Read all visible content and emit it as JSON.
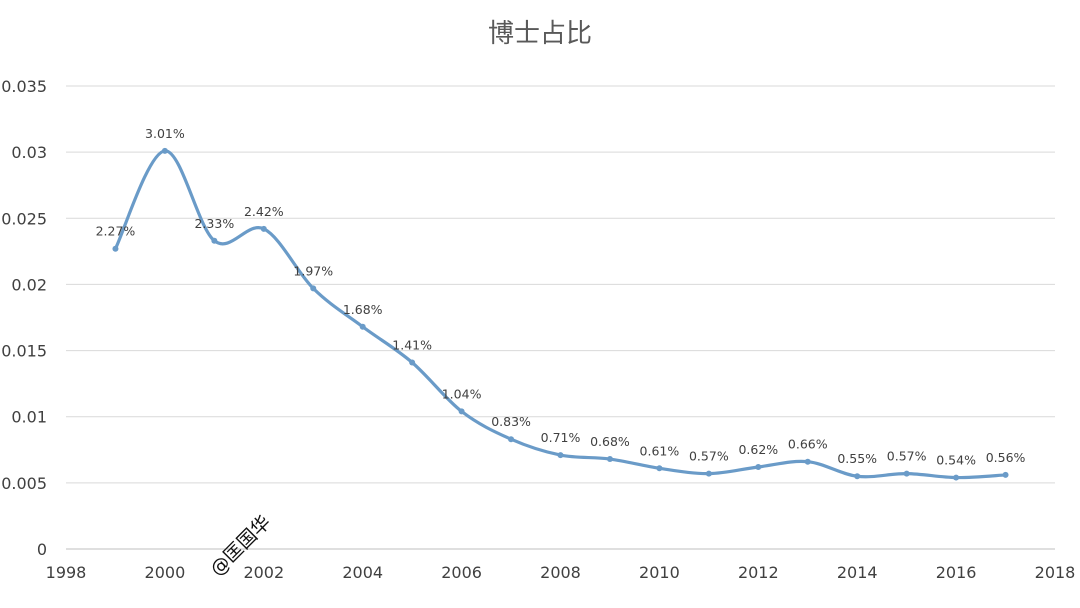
{
  "chart_data": {
    "type": "line",
    "title": "博士占比",
    "xlabel": "",
    "ylabel": "",
    "xlim": [
      1998,
      2018
    ],
    "ylim": [
      0,
      0.035
    ],
    "x_ticks": [
      "1998",
      "2000",
      "2002",
      "2004",
      "2006",
      "2008",
      "2010",
      "2012",
      "2014",
      "2016",
      "2018"
    ],
    "y_ticks": [
      "0",
      "0.005",
      "0.01",
      "0.015",
      "0.02",
      "0.025",
      "0.03",
      "0.035"
    ],
    "grid": true,
    "legend": "none",
    "smooth": true,
    "series": [
      {
        "color": "#6a9bc8",
        "x": [
          1999,
          2000,
          2001,
          2002,
          2003,
          2004,
          2005,
          2006,
          2007,
          2008,
          2009,
          2010,
          2011,
          2012,
          2013,
          2014,
          2015,
          2016,
          2017
        ],
        "values": [
          0.0227,
          0.0301,
          0.0233,
          0.0242,
          0.0197,
          0.0168,
          0.0141,
          0.0104,
          0.0083,
          0.0071,
          0.0068,
          0.0061,
          0.0057,
          0.0062,
          0.0066,
          0.0055,
          0.0057,
          0.0054,
          0.0056
        ],
        "labels": [
          "2.27%",
          "3.01%",
          "2.33%",
          "2.42%",
          "1.97%",
          "1.68%",
          "1.41%",
          "1.04%",
          "0.83%",
          "0.71%",
          "0.68%",
          "0.61%",
          "0.57%",
          "0.62%",
          "0.66%",
          "0.55%",
          "0.57%",
          "0.54%",
          "0.56%"
        ]
      }
    ]
  },
  "watermark": "@匡国华"
}
